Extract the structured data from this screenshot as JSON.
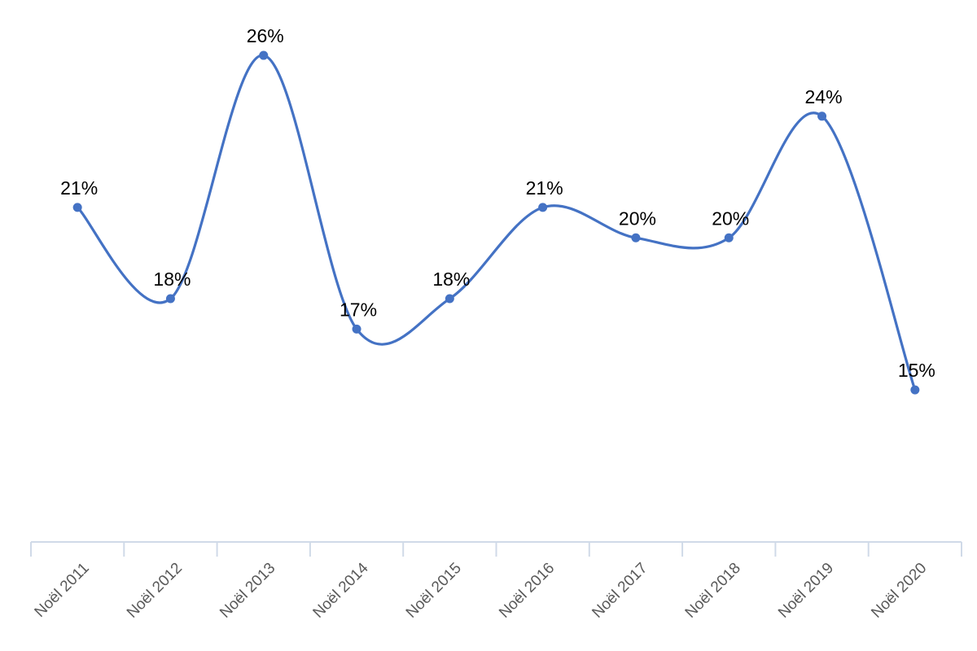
{
  "chart_data": {
    "type": "line",
    "smooth": true,
    "categories": [
      "Noël 2011",
      "Noël 2012",
      "Noël 2013",
      "Noël 2014",
      "Noël 2015",
      "Noël 2016",
      "Noël 2017",
      "Noël 2018",
      "Noël 2019",
      "Noël 2020"
    ],
    "series": [
      {
        "values": [
          21,
          18,
          26,
          17,
          18,
          21,
          20,
          20,
          24,
          15
        ],
        "labels": [
          "21%",
          "18%",
          "26%",
          "17%",
          "18%",
          "21%",
          "20%",
          "20%",
          "24%",
          "15%"
        ],
        "color": "#4472C4"
      }
    ],
    "unit": "%",
    "ylim": [
      10,
      27.5
    ],
    "grid": false,
    "legend": "none",
    "axis_color": "#D0DAE8",
    "title": "",
    "xlabel": "",
    "ylabel": ""
  }
}
